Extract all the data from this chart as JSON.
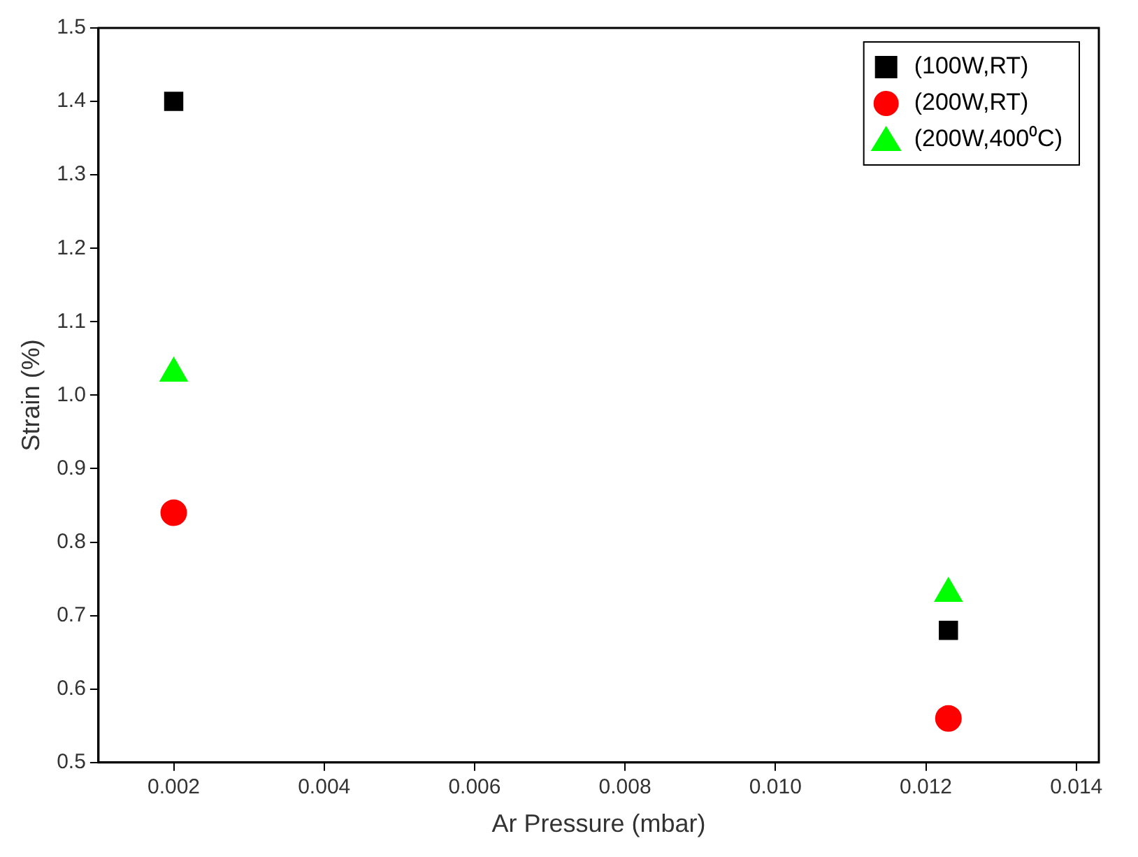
{
  "chart_data": {
    "type": "scatter",
    "xlabel": "Ar Pressure (mbar)",
    "ylabel": "Strain (%)",
    "xlim": [
      0.001,
      0.0143
    ],
    "xticks": [
      {
        "value": 0.002,
        "label": "0.002"
      },
      {
        "value": 0.004,
        "label": "0.004"
      },
      {
        "value": 0.006,
        "label": "0.006"
      },
      {
        "value": 0.008,
        "label": "0.008"
      },
      {
        "value": 0.01,
        "label": "0.010"
      },
      {
        "value": 0.012,
        "label": "0.012"
      },
      {
        "value": 0.014,
        "label": "0.014"
      }
    ],
    "ylim": [
      0.5,
      1.5
    ],
    "yticks": [
      {
        "value": 0.5,
        "label": "0.5"
      },
      {
        "value": 0.6,
        "label": "0.6"
      },
      {
        "value": 0.7,
        "label": "0.7"
      },
      {
        "value": 0.8,
        "label": "0.8"
      },
      {
        "value": 0.9,
        "label": "0.9"
      },
      {
        "value": 1.0,
        "label": "1.0"
      },
      {
        "value": 1.1,
        "label": "1.1"
      },
      {
        "value": 1.2,
        "label": "1.2"
      },
      {
        "value": 1.3,
        "label": "1.3"
      },
      {
        "value": 1.4,
        "label": "1.4"
      },
      {
        "value": 1.5,
        "label": "1.5"
      }
    ],
    "grid": false,
    "legend": "top right",
    "x": [
      0.002,
      0.0123
    ],
    "series": [
      {
        "name": "(100W,RT)",
        "color": "#000000",
        "marker": "square",
        "values": [
          1.4,
          0.68
        ]
      },
      {
        "name": "(200W,RT)",
        "color": "#ff0000",
        "marker": "circle",
        "values": [
          0.84,
          0.56
        ]
      },
      {
        "name": "(200W,400⁰C)",
        "color": "#00ff00",
        "marker": "triangle",
        "values": [
          1.03,
          0.73
        ]
      }
    ]
  }
}
